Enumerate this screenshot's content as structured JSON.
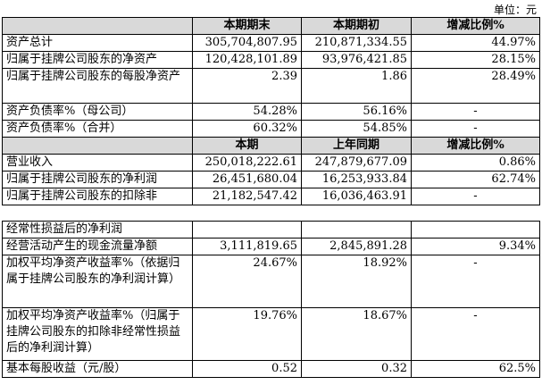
{
  "unit_label": "单位：元",
  "table1": {
    "header1": [
      "",
      "本期期末",
      "本期期初",
      "增减比例%"
    ],
    "rows1": [
      {
        "label": "资产总计",
        "v1": "305,704,807.95",
        "v2": "210,871,334.55",
        "v3": "44.97%"
      },
      {
        "label": "归属于挂牌公司股东的净资产",
        "v1": "120,428,101.89",
        "v2": "93,976,421.85",
        "v3": "28.15%"
      },
      {
        "label": "归属于挂牌公司股东的每股净资产",
        "v1": "2.39",
        "v2": "1.86",
        "v3": "28.49%"
      },
      {
        "label": "资产负债率%（母公司）",
        "v1": "54.28%",
        "v2": "56.16%",
        "v3": "-"
      },
      {
        "label": "资产负债率%（合并）",
        "v1": "60.32%",
        "v2": "54.85%",
        "v3": "-"
      }
    ],
    "header2": [
      "",
      "本期",
      "上年同期",
      "增减比例%"
    ],
    "rows2": [
      {
        "label": "营业收入",
        "v1": "250,018,222.61",
        "v2": "247,879,677.09",
        "v3": "0.86%"
      },
      {
        "label": "归属于挂牌公司股东的净利润",
        "v1": "26,451,680.04",
        "v2": "16,253,933.84",
        "v3": "62.74%"
      },
      {
        "label": "归属于挂牌公司股东的扣除非",
        "v1": "21,182,547.42",
        "v2": "16,036,463.91",
        "v3": "-"
      }
    ]
  },
  "table2": {
    "rows": [
      {
        "label": "经常性损益后的净利润",
        "v1": "",
        "v2": "",
        "v3": ""
      },
      {
        "label": "经营活动产生的现金流量净额",
        "v1": "3,111,819.65",
        "v2": "2,845,891.28",
        "v3": "9.34%"
      },
      {
        "label": "加权平均净资产收益率%（依据归属于挂牌公司股东的净利润计算）",
        "v1": "24.67%",
        "v2": "18.92%",
        "v3": "-"
      },
      {
        "label": "加权平均净资产收益率%（归属于挂牌公司股东的扣除非经常性损益后的净利润计算）",
        "v1": "19.76%",
        "v2": "18.67%",
        "v3": "-"
      },
      {
        "label": "基本每股收益（元/股）",
        "v1": "0.52",
        "v2": "0.32",
        "v3": "62.5%"
      }
    ]
  }
}
